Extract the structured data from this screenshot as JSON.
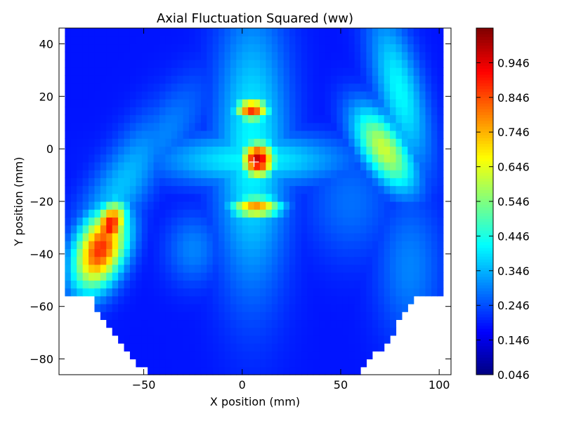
{
  "chart_data": {
    "type": "heatmap",
    "title": "Axial Fluctuation Squared (ww)",
    "xlabel": "X position (mm)",
    "ylabel": "Y position (mm)",
    "xlim": [
      -93,
      106
    ],
    "ylim": [
      -86,
      46
    ],
    "x_ticks": [
      -50,
      0,
      50,
      100
    ],
    "x_tick_labels": [
      "−50",
      "0",
      "50",
      "100"
    ],
    "y_ticks": [
      40,
      20,
      0,
      -20,
      -40,
      -60,
      -80
    ],
    "y_tick_labels": [
      "40",
      "20",
      "0",
      "−20",
      "−40",
      "−60",
      "−80"
    ],
    "colormap": "jet",
    "colorbar": {
      "range": [
        0.046,
        1.046
      ],
      "ticks": [
        0.046,
        0.146,
        0.246,
        0.346,
        0.446,
        0.546,
        0.646,
        0.746,
        0.846,
        0.946
      ],
      "tick_labels": [
        "0.046",
        "0.146",
        "0.246",
        "0.346",
        "0.446",
        "0.546",
        "0.646",
        "0.746",
        "0.846",
        "0.946"
      ]
    },
    "background_value": 0.19,
    "grid": false,
    "marker": {
      "symbol": "+",
      "x": 6,
      "y": -5,
      "color": "#ffffff"
    },
    "features": [
      {
        "x": -72,
        "y": -38,
        "value": 0.88,
        "sx": 8,
        "sy": 12,
        "rot": -35
      },
      {
        "x": -67,
        "y": -29,
        "value": 0.92,
        "sx": 5,
        "sy": 7,
        "rot": -35
      },
      {
        "x": -62,
        "y": -15,
        "value": 0.36,
        "sx": 9,
        "sy": 26,
        "rot": -40
      },
      {
        "x": -40,
        "y": 5,
        "value": 0.3,
        "sx": 9,
        "sy": 22,
        "rot": -45
      },
      {
        "x": 5,
        "y": 0,
        "value": 0.42,
        "sx": 13,
        "sy": 38,
        "rot": 0
      },
      {
        "x": 5,
        "y": -4,
        "value": 0.42,
        "sx": 34,
        "sy": 7,
        "rot": 0
      },
      {
        "x": 8,
        "y": -4,
        "value": 0.98,
        "sx": 6,
        "sy": 5,
        "rot": 0
      },
      {
        "x": 5,
        "y": 15,
        "value": 0.88,
        "sx": 6,
        "sy": 3,
        "rot": 0
      },
      {
        "x": 7,
        "y": -22,
        "value": 0.78,
        "sx": 9,
        "sy": 3,
        "rot": 0
      },
      {
        "x": 72,
        "y": 0,
        "value": 0.62,
        "sx": 7,
        "sy": 14,
        "rot": 45
      },
      {
        "x": 80,
        "y": 22,
        "value": 0.42,
        "sx": 8,
        "sy": 22,
        "rot": 20
      },
      {
        "x": 55,
        "y": -20,
        "value": 0.28,
        "sx": 16,
        "sy": 16,
        "rot": 0
      },
      {
        "x": -25,
        "y": -38,
        "value": 0.3,
        "sx": 10,
        "sy": 10,
        "rot": 0
      },
      {
        "x": 85,
        "y": -45,
        "value": 0.3,
        "sx": 12,
        "sy": 20,
        "rot": 0
      },
      {
        "x": 20,
        "y": 35,
        "value": 0.1,
        "sx": 40,
        "sy": 8,
        "rot": 0
      },
      {
        "x": 5,
        "y": -70,
        "value": 0.1,
        "sx": 50,
        "sy": 10,
        "rot": 0
      }
    ]
  }
}
